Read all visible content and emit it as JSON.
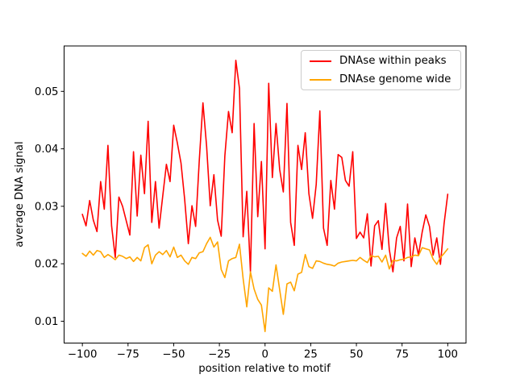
{
  "figure": {
    "background": "#ffffff",
    "spine_color": "#000000",
    "text_color": "#000000"
  },
  "legend": {
    "entries": [
      {
        "label": "DNAse within peaks",
        "color": "#ff0000"
      },
      {
        "label": "DNAse genome wide",
        "color": "#ffa500"
      }
    ]
  },
  "chart_data": {
    "type": "line",
    "title": "",
    "xlabel": "position relative to motif",
    "ylabel": "average DNA signal",
    "xlim": [
      -110,
      110
    ],
    "ylim": [
      0.0062,
      0.0579
    ],
    "grid": false,
    "legend_position": "upper right",
    "x_ticks": {
      "values": [
        -100,
        -75,
        -50,
        -25,
        0,
        25,
        50,
        75,
        100
      ],
      "labels": [
        "−100",
        "−75",
        "−50",
        "−25",
        "0",
        "25",
        "50",
        "75",
        "100"
      ]
    },
    "y_ticks": {
      "values": [
        0.01,
        0.02,
        0.03,
        0.04,
        0.05
      ],
      "labels": [
        "0.01",
        "0.02",
        "0.03",
        "0.04",
        "0.05"
      ]
    },
    "x": [
      -100,
      -98,
      -96,
      -94,
      -92,
      -90,
      -88,
      -86,
      -84,
      -82,
      -80,
      -78,
      -76,
      -74,
      -72,
      -70,
      -68,
      -66,
      -64,
      -62,
      -60,
      -58,
      -56,
      -54,
      -52,
      -50,
      -48,
      -46,
      -44,
      -42,
      -40,
      -38,
      -36,
      -34,
      -32,
      -30,
      -28,
      -26,
      -24,
      -22,
      -20,
      -18,
      -16,
      -14,
      -12,
      -10,
      -8,
      -6,
      -4,
      -2,
      0,
      2,
      4,
      6,
      8,
      10,
      12,
      14,
      16,
      18,
      20,
      22,
      24,
      26,
      28,
      30,
      32,
      34,
      36,
      38,
      40,
      42,
      44,
      46,
      48,
      50,
      52,
      54,
      56,
      58,
      60,
      62,
      64,
      66,
      68,
      70,
      72,
      74,
      76,
      78,
      80,
      82,
      84,
      86,
      88,
      90,
      92,
      94,
      96,
      98,
      100
    ],
    "series": [
      {
        "name": "DNAse within peaks",
        "color": "#ff0000",
        "values": [
          0.0286,
          0.0266,
          0.031,
          0.0276,
          0.0256,
          0.0343,
          0.0295,
          0.0406,
          0.0266,
          0.0211,
          0.0316,
          0.03,
          0.0275,
          0.025,
          0.0395,
          0.0283,
          0.0389,
          0.0322,
          0.0448,
          0.0272,
          0.0343,
          0.0262,
          0.0318,
          0.0373,
          0.0343,
          0.0441,
          0.041,
          0.0375,
          0.0312,
          0.0235,
          0.0301,
          0.0265,
          0.038,
          0.048,
          0.0405,
          0.0301,
          0.0355,
          0.0276,
          0.0248,
          0.0388,
          0.0465,
          0.0428,
          0.0554,
          0.0505,
          0.0247,
          0.0326,
          0.0186,
          0.0444,
          0.0282,
          0.0378,
          0.0226,
          0.0514,
          0.035,
          0.0444,
          0.0364,
          0.0325,
          0.0479,
          0.0272,
          0.0232,
          0.0406,
          0.0364,
          0.0428,
          0.0322,
          0.0279,
          0.0338,
          0.0466,
          0.0262,
          0.0232,
          0.0345,
          0.0295,
          0.039,
          0.0385,
          0.0345,
          0.0335,
          0.0395,
          0.0244,
          0.0255,
          0.0245,
          0.0287,
          0.0196,
          0.0266,
          0.0275,
          0.0225,
          0.0305,
          0.0225,
          0.0186,
          0.0245,
          0.0265,
          0.0205,
          0.0304,
          0.0195,
          0.0245,
          0.0215,
          0.0255,
          0.0285,
          0.0265,
          0.0215,
          0.0245,
          0.0199,
          0.027,
          0.0321
        ]
      },
      {
        "name": "DNAse genome wide",
        "color": "#ffa500",
        "values": [
          0.0218,
          0.0213,
          0.0222,
          0.0215,
          0.0223,
          0.0221,
          0.0211,
          0.0216,
          0.0212,
          0.0207,
          0.0215,
          0.0213,
          0.0209,
          0.0212,
          0.0204,
          0.0211,
          0.0205,
          0.0228,
          0.0233,
          0.02,
          0.0215,
          0.0221,
          0.0216,
          0.0223,
          0.0212,
          0.0229,
          0.0211,
          0.0215,
          0.0205,
          0.0199,
          0.0211,
          0.0209,
          0.0219,
          0.0221,
          0.0235,
          0.0246,
          0.0229,
          0.0238,
          0.019,
          0.0176,
          0.0205,
          0.0209,
          0.0211,
          0.0234,
          0.0174,
          0.0125,
          0.0186,
          0.0156,
          0.0138,
          0.0128,
          0.0082,
          0.0158,
          0.0152,
          0.0198,
          0.0155,
          0.0112,
          0.0165,
          0.0168,
          0.0153,
          0.0182,
          0.0185,
          0.0216,
          0.0195,
          0.0192,
          0.0205,
          0.0204,
          0.0201,
          0.0199,
          0.0198,
          0.0196,
          0.0201,
          0.0203,
          0.0204,
          0.0205,
          0.0206,
          0.0205,
          0.0211,
          0.0206,
          0.0202,
          0.0214,
          0.0212,
          0.0213,
          0.0203,
          0.0215,
          0.0191,
          0.0206,
          0.0205,
          0.0207,
          0.0208,
          0.0211,
          0.0212,
          0.0215,
          0.0214,
          0.0228,
          0.0226,
          0.0224,
          0.0208,
          0.0199,
          0.0211,
          0.0218,
          0.0226
        ]
      }
    ]
  }
}
